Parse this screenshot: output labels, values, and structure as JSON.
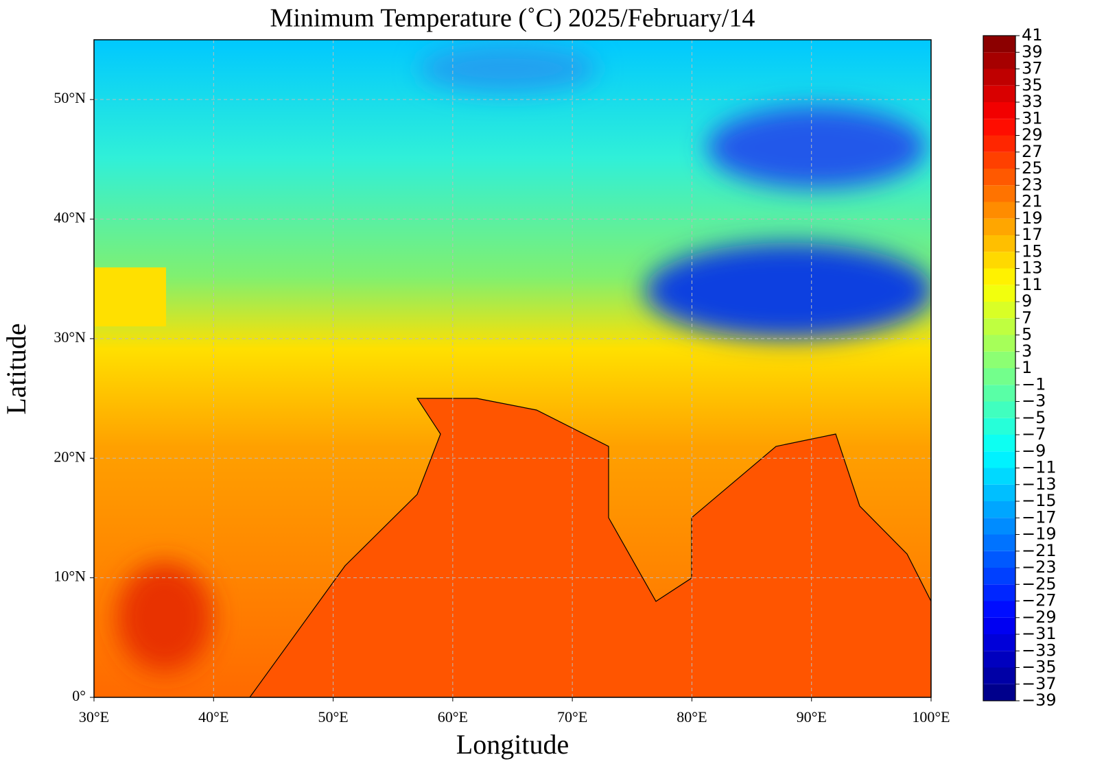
{
  "chart_data": {
    "type": "map",
    "title": "Minimum Temperature (˚C)  2025/February/14",
    "x_label": "Longitude",
    "y_label": "Latitude",
    "xlim": [
      30,
      100
    ],
    "ylim": [
      0,
      55
    ],
    "xticks": [
      {
        "value": 30,
        "label": "30°E"
      },
      {
        "value": 40,
        "label": "40°E"
      },
      {
        "value": 50,
        "label": "50°E"
      },
      {
        "value": 60,
        "label": "60°E"
      },
      {
        "value": 70,
        "label": "70°E"
      },
      {
        "value": 80,
        "label": "80°E"
      },
      {
        "value": 90,
        "label": "90°E"
      },
      {
        "value": 100,
        "label": "100°E"
      }
    ],
    "yticks": [
      {
        "value": 0,
        "label": "0°"
      },
      {
        "value": 10,
        "label": "10°N"
      },
      {
        "value": 20,
        "label": "20°N"
      },
      {
        "value": 30,
        "label": "30°N"
      },
      {
        "value": 40,
        "label": "40°N"
      },
      {
        "value": 50,
        "label": "50°N"
      }
    ],
    "grid": true,
    "colorbar": {
      "colormap": "jet",
      "lim": [
        -39,
        41
      ],
      "ticks": [
        {
          "value": -39,
          "label": "−39"
        },
        {
          "value": -37,
          "label": "−37"
        },
        {
          "value": -35,
          "label": "−35"
        },
        {
          "value": -33,
          "label": "−33"
        },
        {
          "value": -31,
          "label": "−31"
        },
        {
          "value": -29,
          "label": "−29"
        },
        {
          "value": -27,
          "label": "−27"
        },
        {
          "value": -25,
          "label": "−25"
        },
        {
          "value": -23,
          "label": "−23"
        },
        {
          "value": -21,
          "label": "−21"
        },
        {
          "value": -19,
          "label": "−19"
        },
        {
          "value": -17,
          "label": "−17"
        },
        {
          "value": -15,
          "label": "−15"
        },
        {
          "value": -13,
          "label": "−13"
        },
        {
          "value": -11,
          "label": "−11"
        },
        {
          "value": -9,
          "label": "−9"
        },
        {
          "value": -7,
          "label": "−7"
        },
        {
          "value": -5,
          "label": "−5"
        },
        {
          "value": -3,
          "label": "−3"
        },
        {
          "value": -1,
          "label": "−1"
        },
        1,
        3,
        5,
        7,
        9,
        11,
        13,
        15,
        17,
        19,
        21,
        23,
        25,
        27,
        29,
        31,
        33,
        35,
        37,
        39,
        41
      ]
    }
  }
}
